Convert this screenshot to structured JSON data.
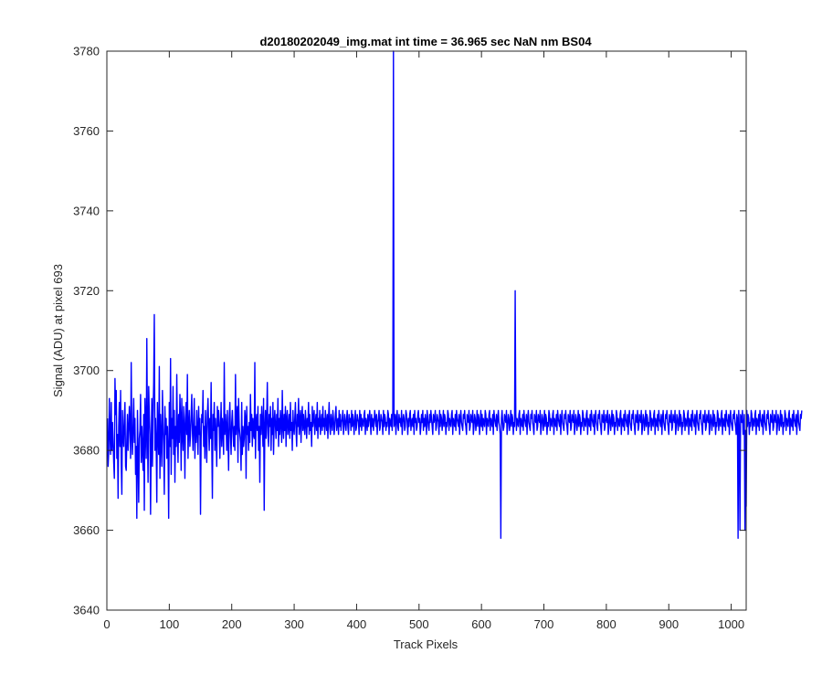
{
  "chart_data": {
    "type": "line",
    "title": "d20180202049_img.mat int time = 36.965 sec  NaN nm BS04",
    "xlabel": "Track Pixels",
    "ylabel": "Signal (ADU) at pixel 693",
    "xlim": [
      0,
      1024
    ],
    "ylim": [
      3640,
      3780
    ],
    "xticks": [
      0,
      100,
      200,
      300,
      400,
      500,
      600,
      700,
      800,
      900,
      1000
    ],
    "yticks": [
      3640,
      3660,
      3680,
      3700,
      3720,
      3740,
      3760,
      3780
    ],
    "grid": false,
    "line_color": "#0000ff",
    "series": [
      {
        "x_start": 1,
        "x_step": 1,
        "values": [
          3688,
          3676,
          3680,
          3693,
          3684,
          3679,
          3692,
          3680,
          3687,
          3682,
          3677,
          3673,
          3698,
          3689,
          3695,
          3678,
          3684,
          3668,
          3686,
          3692,
          3681,
          3695,
          3677,
          3669,
          3690,
          3684,
          3681,
          3688,
          3692,
          3676,
          3675,
          3683,
          3689,
          3680,
          3685,
          3691,
          3686,
          3678,
          3702,
          3684,
          3679,
          3686,
          3693,
          3682,
          3688,
          3674,
          3681,
          3663,
          3690,
          3679,
          3667,
          3683,
          3685,
          3694,
          3677,
          3686,
          3680,
          3675,
          3689,
          3665,
          3693,
          3686,
          3678,
          3708,
          3685,
          3672,
          3696,
          3689,
          3684,
          3664,
          3681,
          3693,
          3676,
          3689,
          3697,
          3714,
          3680,
          3688,
          3682,
          3667,
          3692,
          3684,
          3679,
          3701,
          3673,
          3689,
          3683,
          3676,
          3695,
          3687,
          3681,
          3669,
          3691,
          3684,
          3688,
          3678,
          3686,
          3680,
          3663,
          3692,
          3681,
          3703,
          3674,
          3688,
          3683,
          3696,
          3679,
          3690,
          3672,
          3686,
          3681,
          3699,
          3684,
          3677,
          3689,
          3682,
          3694,
          3688,
          3675,
          3693,
          3684,
          3680,
          3691,
          3686,
          3673,
          3688,
          3692,
          3684,
          3699,
          3678,
          3686,
          3690,
          3681,
          3684,
          3689,
          3694,
          3685,
          3680,
          3687,
          3693,
          3678,
          3686,
          3682,
          3690,
          3685,
          3679,
          3691,
          3684,
          3688,
          3664,
          3683,
          3689,
          3687,
          3695,
          3681,
          3686,
          3678,
          3690,
          3684,
          3677,
          3689,
          3693,
          3686,
          3680,
          3688,
          3683,
          3697,
          3682,
          3668,
          3689,
          3685,
          3692,
          3680,
          3688,
          3684,
          3676,
          3691,
          3686,
          3690,
          3687,
          3678,
          3685,
          3692,
          3681,
          3688,
          3685,
          3679,
          3702,
          3684,
          3689,
          3686,
          3680,
          3690,
          3683,
          3675,
          3688,
          3692,
          3684,
          3679,
          3687,
          3690,
          3685,
          3681,
          3686,
          3680,
          3699,
          3684,
          3688,
          3691,
          3677,
          3693,
          3686,
          3684,
          3682,
          3675,
          3692,
          3679,
          3686,
          3681,
          3683,
          3690,
          3688,
          3673,
          3691,
          3684,
          3686,
          3680,
          3687,
          3682,
          3694,
          3685,
          3689,
          3681,
          3688,
          3684,
          3683,
          3702,
          3678,
          3687,
          3689,
          3685,
          3691,
          3680,
          3686,
          3672,
          3689,
          3684,
          3691,
          3687,
          3681,
          3693,
          3665,
          3686,
          3690,
          3683,
          3688,
          3697,
          3684,
          3681,
          3689,
          3686,
          3691,
          3680,
          3688,
          3684,
          3692,
          3679,
          3687,
          3690,
          3686,
          3683,
          3689,
          3685,
          3693,
          3681,
          3688,
          3684,
          3690,
          3687,
          3682,
          3695,
          3686,
          3683,
          3689,
          3685,
          3691,
          3681,
          3688,
          3690,
          3684,
          3686,
          3689,
          3683,
          3692,
          3685,
          3687,
          3680,
          3690,
          3686,
          3684,
          3688,
          3692,
          3685,
          3681,
          3689,
          3686,
          3693,
          3684,
          3687,
          3690,
          3682,
          3688,
          3691,
          3685,
          3689,
          3686,
          3684,
          3690,
          3687,
          3683,
          3688,
          3686,
          3692,
          3684,
          3689,
          3685,
          3687,
          3681,
          3691,
          3686,
          3688,
          3690,
          3684,
          3687,
          3689,
          3685,
          3692,
          3683,
          3688,
          3686,
          3690,
          3684,
          3687,
          3689,
          3685,
          3691,
          3686,
          3688,
          3684,
          3690,
          3687,
          3685,
          3689,
          3683,
          3688,
          3692,
          3686,
          3684,
          3689,
          3687,
          3685,
          3690,
          3688,
          3684,
          3686,
          3689,
          3691,
          3685,
          3687,
          3688,
          3684,
          3690,
          3686,
          3689,
          3685,
          3687,
          3688,
          3690,
          3684,
          3686,
          3689,
          3687,
          3685,
          3688,
          3690,
          3686,
          3684,
          3689,
          3687,
          3688,
          3685,
          3690,
          3686,
          3689,
          3687,
          3684,
          3688,
          3690,
          3685,
          3686,
          3689,
          3688,
          3687,
          3684,
          3690,
          3686,
          3689,
          3685,
          3688,
          3687,
          3686,
          3689,
          3690,
          3684,
          3688,
          3687,
          3685,
          3689,
          3686,
          3688,
          3690,
          3687,
          3684,
          3689,
          3686,
          3688,
          3685,
          3687,
          3690,
          3688,
          3686,
          3689,
          3684,
          3687,
          3688,
          3690,
          3685,
          3686,
          3689,
          3688,
          3687,
          3684,
          3690,
          3686,
          3689,
          3688,
          3685,
          3687,
          3686,
          3690,
          3689,
          3684,
          3688,
          3687,
          3686,
          3689,
          3685,
          3690,
          3688,
          3686,
          3687,
          3689,
          3684,
          3688,
          3690,
          3686,
          3685,
          3689,
          3687,
          3688,
          3686,
          3690,
          3684,
          3687,
          3689,
          3688,
          3685,
          3686,
          3690,
          3689,
          3687,
          3684,
          3688,
          3686,
          3689,
          3690,
          3685,
          3687,
          3688,
          3686,
          3689,
          3684,
          3690,
          3687,
          3688,
          3685,
          3686,
          3689,
          3690,
          3687,
          3688,
          3684,
          3686,
          3689,
          3687,
          3690,
          3685,
          3688,
          3686,
          3689,
          3687,
          3684,
          3690,
          3688,
          3686,
          3685,
          3689,
          3687,
          3690,
          3688,
          3686,
          3684,
          3689,
          3687,
          3688,
          3690,
          3685,
          3686,
          3689,
          3688,
          3687,
          3684,
          3690,
          3686,
          3689,
          3688,
          3685,
          3687,
          3690,
          3686,
          3689,
          3688,
          3684,
          3687,
          3686,
          3690,
          3689,
          3685,
          3688,
          3687,
          3686,
          3689,
          3690,
          3684,
          3688,
          3687,
          3686,
          3689,
          3685,
          3690,
          3688,
          3687,
          3686,
          3689,
          3684,
          3688,
          3690,
          3687,
          3686,
          3685,
          3689,
          3688,
          3690,
          3687,
          3686,
          3684,
          3689,
          3688,
          3687,
          3690,
          3685,
          3686,
          3689,
          3688,
          3687,
          3690,
          3684,
          3686,
          3689,
          3688,
          3685,
          3687,
          3690,
          3686,
          3689,
          3688,
          3684,
          3687,
          3690,
          3686,
          3689,
          3685,
          3688,
          3687,
          3686,
          3690,
          3689,
          3684,
          3688,
          3687,
          3686,
          3689,
          3690,
          3685,
          3688,
          3687,
          3686,
          3689,
          3684,
          3690,
          3688,
          3687,
          3686,
          3689,
          3685,
          3688,
          3690,
          3687,
          3686,
          3684,
          3689,
          3688,
          3690,
          3687,
          3685,
          3686,
          3689,
          3688,
          3687,
          3690,
          3684,
          3686,
          3689,
          3688,
          3685,
          3687,
          3690,
          3686,
          3689,
          3688,
          3684,
          3687,
          3686,
          3690,
          3689,
          3685,
          3688,
          3687,
          3686,
          3689,
          3690,
          3684,
          3688,
          3687,
          3686,
          3689,
          3685,
          3690,
          3688,
          3687,
          3686,
          3689,
          3684,
          3688,
          3690,
          3687,
          3686,
          3685,
          3689,
          3688,
          3690,
          3687,
          3686,
          3684,
          3689,
          3688,
          3687,
          3690,
          3685,
          3686,
          3689,
          3688,
          3687,
          3690,
          3684,
          3686,
          3689,
          3688,
          3685,
          3687,
          3690,
          3686,
          3689,
          3688,
          3684,
          3687,
          3686,
          3690,
          3689,
          3685,
          3688,
          3687,
          3686,
          3689,
          3690,
          3684,
          3688,
          3687,
          3686,
          3689,
          3685,
          3690,
          3688,
          3687,
          3686,
          3689,
          3684,
          3688,
          3690,
          3687,
          3686,
          3685,
          3689,
          3688,
          3690,
          3687,
          3686,
          3684,
          3689,
          3688,
          3687,
          3690,
          3685,
          3686,
          3689,
          3688,
          3687,
          3690,
          3684,
          3686,
          3689,
          3688,
          3685,
          3687,
          3690,
          3686,
          3689,
          3688,
          3684,
          3687,
          3686,
          3690,
          3689,
          3685,
          3688,
          3687,
          3686,
          3689,
          3690,
          3684,
          3688,
          3687,
          3686,
          3689,
          3685,
          3690,
          3688,
          3687,
          3686,
          3689,
          3684,
          3688,
          3690,
          3687,
          3686,
          3685,
          3689,
          3688,
          3690,
          3687,
          3686,
          3684,
          3689,
          3688,
          3687,
          3690,
          3685,
          3686,
          3689,
          3688,
          3687,
          3690,
          3684,
          3686,
          3689,
          3688,
          3685,
          3687,
          3690,
          3686,
          3689,
          3688,
          3684,
          3687,
          3686,
          3690,
          3689,
          3685,
          3688,
          3687,
          3686,
          3689,
          3690,
          3684,
          3688,
          3687,
          3686,
          3689,
          3685,
          3690,
          3688,
          3687,
          3686,
          3689,
          3684,
          3688,
          3690,
          3687,
          3686,
          3685,
          3689,
          3688,
          3690,
          3687,
          3686,
          3684,
          3689,
          3688,
          3687,
          3690,
          3685,
          3686,
          3689,
          3688,
          3687,
          3690,
          3684,
          3686,
          3689,
          3688,
          3685,
          3687,
          3690,
          3686,
          3689,
          3688,
          3684,
          3687,
          3686,
          3690,
          3689,
          3685,
          3688,
          3687,
          3686,
          3689,
          3690,
          3684,
          3688,
          3687,
          3686,
          3689,
          3685,
          3690,
          3688,
          3687,
          3686,
          3689,
          3684,
          3688,
          3690,
          3687,
          3686,
          3685,
          3689,
          3688,
          3690,
          3687,
          3686,
          3684,
          3689,
          3688,
          3687,
          3690,
          3685,
          3686,
          3689,
          3688,
          3687,
          3690,
          3684,
          3686,
          3689,
          3688,
          3685,
          3687,
          3690,
          3686,
          3689,
          3688,
          3684,
          3687,
          3686,
          3690,
          3689,
          3685,
          3688,
          3687,
          3686,
          3689,
          3690,
          3684,
          3688,
          3687,
          3686,
          3689,
          3685,
          3690,
          3688,
          3687,
          3686,
          3689,
          3684,
          3688,
          3690,
          3687,
          3686,
          3685,
          3689,
          3688,
          3690,
          3687,
          3686,
          3684,
          3689,
          3688,
          3687,
          3690,
          3685,
          3686,
          3689,
          3688,
          3687,
          3690,
          3684,
          3686,
          3689,
          3688,
          3685,
          3687,
          3690,
          3686,
          3689,
          3688,
          3684,
          3687,
          3686,
          3690,
          3689,
          3685,
          3688,
          3687,
          3686,
          3689,
          3690,
          3684,
          3688,
          3687,
          3686,
          3689,
          3685,
          3690,
          3688,
          3687,
          3686,
          3689,
          3684,
          3688,
          3690,
          3687,
          3686,
          3685,
          3689,
          3688,
          3690,
          3687,
          3686,
          3684,
          3689,
          3688,
          3687,
          3690,
          3685,
          3686,
          3689,
          3688,
          3687,
          3690,
          3684,
          3686,
          3689,
          3688,
          3685,
          3687,
          3690,
          3686,
          3689,
          3688,
          3684,
          3687,
          3686,
          3690,
          3689,
          3685,
          3688,
          3687,
          3686,
          3689,
          3690,
          3684,
          3688,
          3687,
          3686,
          3689,
          3685,
          3690,
          3688,
          3687,
          3686,
          3689,
          3684,
          3688,
          3690,
          3687,
          3686,
          3685,
          3689,
          3688,
          3690,
          3687,
          3686,
          3684,
          3689,
          3688,
          3687,
          3690,
          3685,
          3686,
          3689,
          3688,
          3687,
          3690,
          3684,
          3686,
          3689,
          3688,
          3685,
          3687,
          3690,
          3686,
          3689,
          3688,
          3684,
          3687,
          3686,
          3690,
          3689,
          3685,
          3688,
          3687,
          3686,
          3689,
          3690,
          3684,
          3688,
          3687,
          3686,
          3689,
          3685,
          3690,
          3688,
          3687,
          3686,
          3689,
          3684,
          3688,
          3690,
          3687,
          3686,
          3685,
          3689,
          3688,
          3690
        ]
      }
    ],
    "features": [
      {
        "x": 459,
        "y": 3780
      },
      {
        "x": 654,
        "y": 3720
      },
      {
        "x": 631,
        "y": 3658
      },
      {
        "x": 1011,
        "y": 3658
      },
      {
        "x": 1014,
        "y": 3660
      },
      {
        "x": 1022,
        "y": 3660
      },
      {
        "x": 1024,
        "y": 3666
      }
    ]
  }
}
